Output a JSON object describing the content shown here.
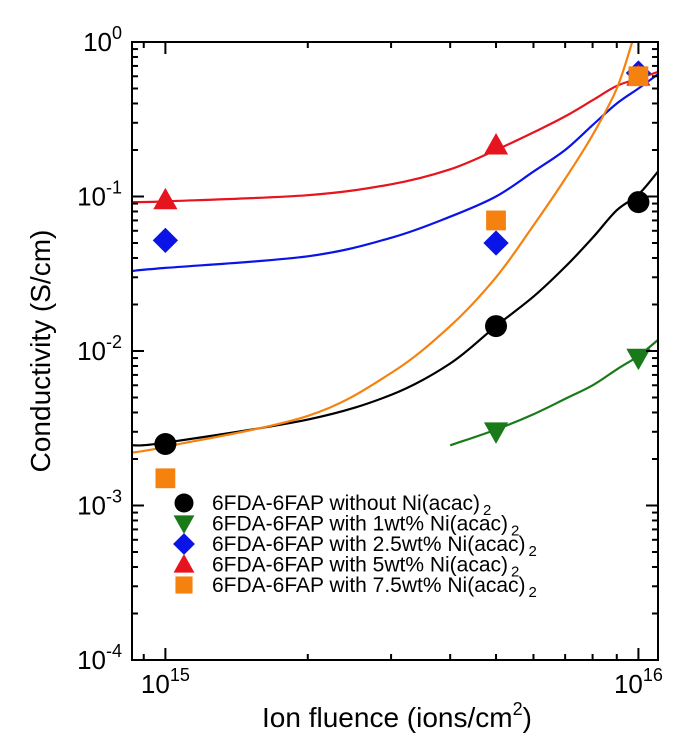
{
  "chart_data": {
    "type": "scatter",
    "title": "",
    "xlabel": {
      "text": "Ion fluence (ions/cm",
      "sup": "2",
      "tail": ")"
    },
    "ylabel": "Conductivity (S/cm)",
    "x_scale": "log",
    "y_scale": "log",
    "xlim": [
      850000000000000.0,
      1.1e+16
    ],
    "ylim": [
      0.0001,
      1
    ],
    "x_ticks": [
      {
        "value": 1000000000000000.0,
        "base": "10",
        "exp": "15"
      },
      {
        "value": 1e+16,
        "base": "10",
        "exp": "16"
      }
    ],
    "y_ticks": [
      {
        "value": 1,
        "base": "10",
        "exp": "0"
      },
      {
        "value": 0.1,
        "base": "10",
        "exp": "-1"
      },
      {
        "value": 0.01,
        "base": "10",
        "exp": "-2"
      },
      {
        "value": 0.001,
        "base": "10",
        "exp": "-3"
      },
      {
        "value": 0.0001,
        "base": "10",
        "exp": "-4"
      }
    ],
    "legend_position": "bottom-right",
    "series": [
      {
        "name": "6FDA-6FAP without Ni(acac)",
        "name_sub": "2",
        "marker": "circle",
        "color": "#000000",
        "x": [
          1000000000000000.0,
          5000000000000000.0,
          1e+16
        ],
        "y": [
          0.0025,
          0.0145,
          0.092
        ],
        "fit": {
          "x": [
            850000000000000.0,
            1000000000000000.0,
            2000000000000000.0,
            3000000000000000.0,
            4000000000000000.0,
            5000000000000000.0,
            6000000000000000.0,
            7000000000000000.0,
            8000000000000000.0,
            9000000000000000.0,
            1e+16,
            1.1e+16
          ],
          "y": [
            0.00245,
            0.00255,
            0.0036,
            0.0052,
            0.0083,
            0.0145,
            0.0225,
            0.035,
            0.054,
            0.0815,
            0.103,
            0.145
          ]
        }
      },
      {
        "name": "6FDA-6FAP with 1wt% Ni(acac)",
        "name_sub": "2",
        "marker": "triangle-down",
        "color": "#1a7a1a",
        "x": [
          5000000000000000.0,
          1e+16
        ],
        "y": [
          0.003,
          0.009
        ],
        "fit": {
          "x": [
            4000000000000000.0,
            5000000000000000.0,
            6000000000000000.0,
            7000000000000000.0,
            8000000000000000.0,
            9000000000000000.0,
            1e+16,
            1.1e+16
          ],
          "y": [
            0.00245,
            0.0031,
            0.0039,
            0.0049,
            0.006,
            0.0076,
            0.0093,
            0.0118
          ]
        }
      },
      {
        "name": "6FDA-6FAP with 2.5wt% Ni(acac)",
        "name_sub": "2",
        "marker": "diamond",
        "color": "#0a14e6",
        "x": [
          1000000000000000.0,
          5000000000000000.0,
          1e+16
        ],
        "y": [
          0.052,
          0.05,
          0.63
        ],
        "fit": {
          "x": [
            850000000000000.0,
            1000000000000000.0,
            2000000000000000.0,
            3000000000000000.0,
            4000000000000000.0,
            5000000000000000.0,
            6000000000000000.0,
            7000000000000000.0,
            8000000000000000.0,
            9000000000000000.0,
            1e+16,
            1.1e+16
          ],
          "y": [
            0.033,
            0.0345,
            0.041,
            0.054,
            0.074,
            0.1,
            0.145,
            0.2,
            0.29,
            0.4,
            0.5,
            0.62
          ]
        }
      },
      {
        "name": "6FDA-6FAP with 5wt% Ni(acac)",
        "name_sub": "2",
        "marker": "triangle-up",
        "color": "#e6141e",
        "x": [
          1000000000000000.0,
          5000000000000000.0,
          1e+16
        ],
        "y": [
          0.095,
          0.215,
          0.6
        ],
        "fit": {
          "x": [
            850000000000000.0,
            1000000000000000.0,
            2000000000000000.0,
            3000000000000000.0,
            4000000000000000.0,
            5000000000000000.0,
            6000000000000000.0,
            7000000000000000.0,
            8000000000000000.0,
            9000000000000000.0,
            1e+16,
            1.1e+16
          ],
          "y": [
            0.092,
            0.093,
            0.102,
            0.12,
            0.15,
            0.2,
            0.26,
            0.33,
            0.42,
            0.52,
            0.58,
            0.64
          ]
        }
      },
      {
        "name": "6FDA-6FAP with 7.5wt% Ni(acac)",
        "name_sub": "2",
        "marker": "square",
        "color": "#f5820f",
        "x": [
          1000000000000000.0,
          5000000000000000.0,
          1e+16
        ],
        "y": [
          0.0015,
          0.07,
          0.6
        ],
        "fit": {
          "x": [
            850000000000000.0,
            1000000000000000.0,
            2000000000000000.0,
            3000000000000000.0,
            4000000000000000.0,
            5000000000000000.0,
            6000000000000000.0,
            7000000000000000.0,
            8000000000000000.0,
            9000000000000000.0,
            9700000000000000.0
          ],
          "y": [
            0.0022,
            0.0024,
            0.0038,
            0.0072,
            0.0145,
            0.03,
            0.065,
            0.13,
            0.25,
            0.5,
            1.0
          ]
        }
      }
    ]
  }
}
